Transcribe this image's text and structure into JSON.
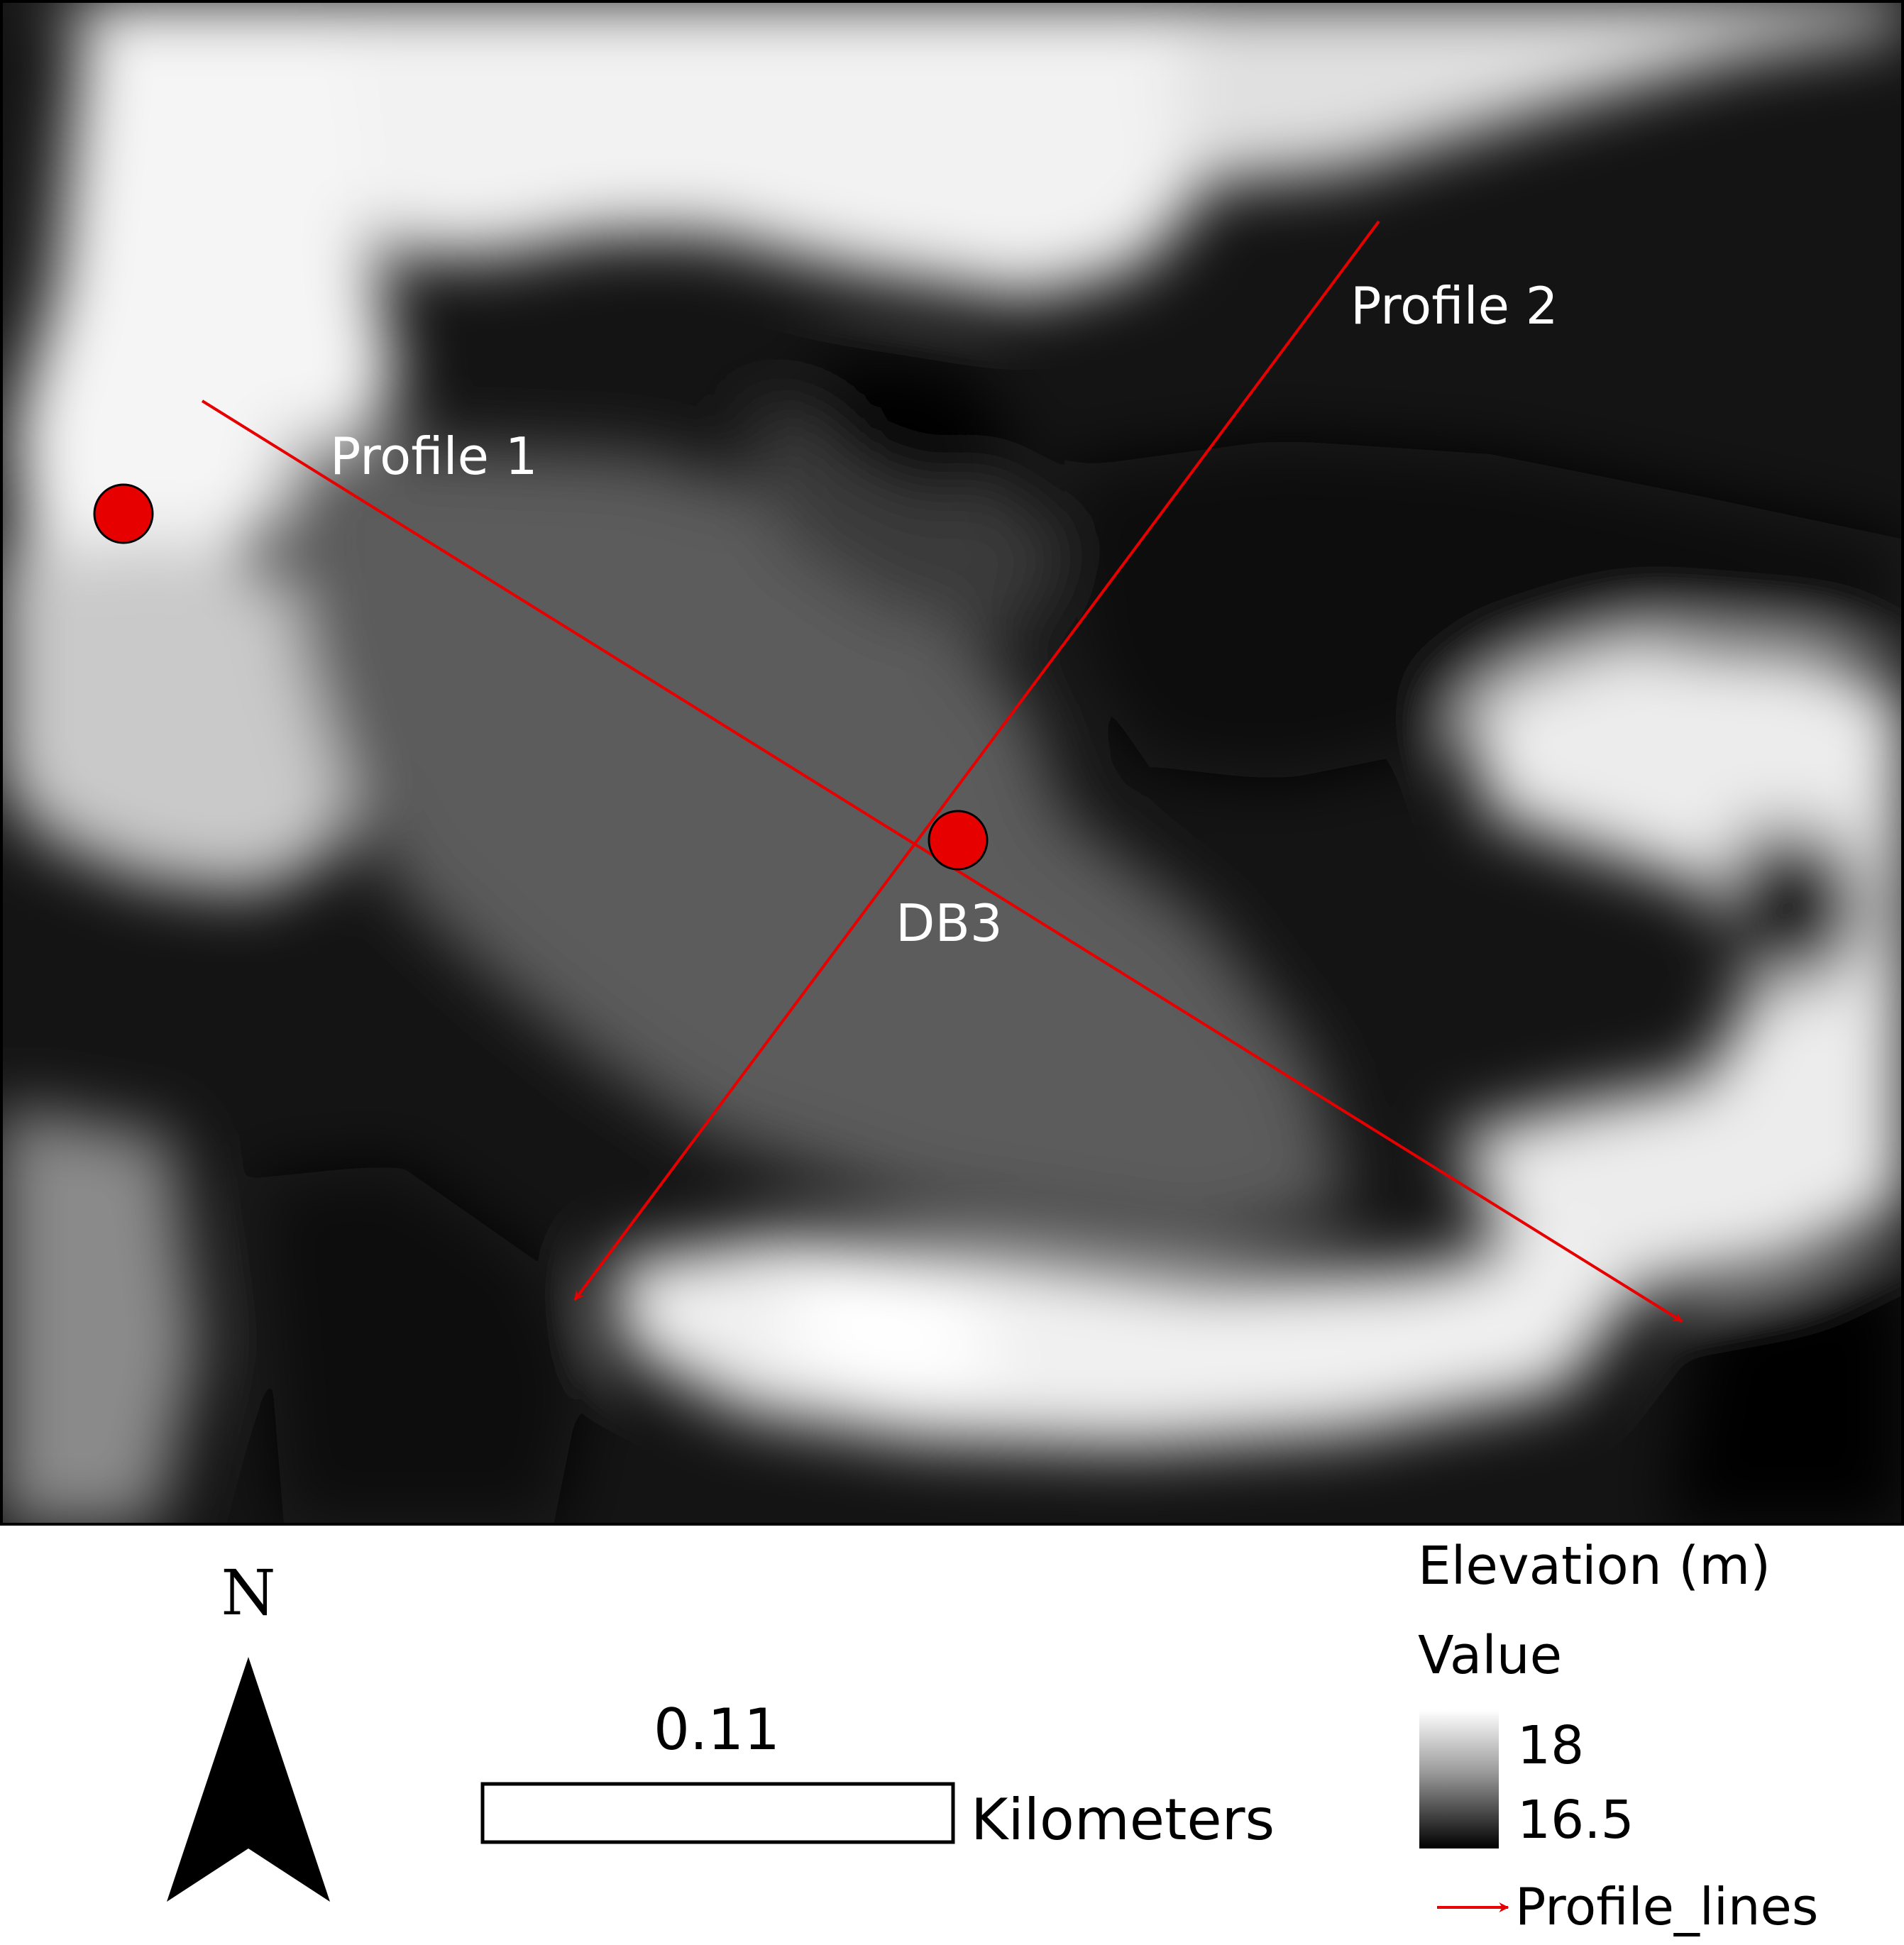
{
  "map": {
    "points": [
      {
        "label": ""
      },
      {
        "label": "DB3"
      }
    ],
    "profiles": [
      {
        "label": "Profile 1"
      },
      {
        "label": "Profile 2"
      }
    ]
  },
  "north_arrow": {
    "letter": "N"
  },
  "scale_bar": {
    "value": "0.11",
    "units": "Kilometers"
  },
  "legend": {
    "title": "Elevation (m)",
    "subtitle": "Value",
    "high": "18",
    "low": "16.5",
    "line_label": "Profile_lines"
  },
  "colors": {
    "point": "#e60000",
    "profile_line": "#e60000",
    "frame": "#000000"
  }
}
